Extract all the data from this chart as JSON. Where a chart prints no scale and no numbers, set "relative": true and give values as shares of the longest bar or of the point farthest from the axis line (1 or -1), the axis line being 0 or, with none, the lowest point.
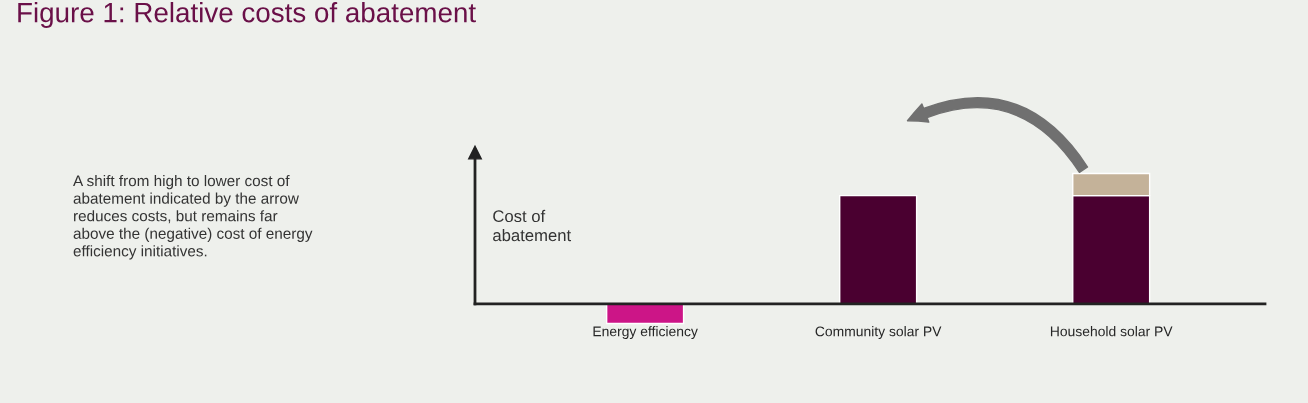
{
  "chart_data": {
    "type": "bar",
    "title": "Figure 1: Relative costs of abatement",
    "ylabel": "Cost of\nabatement",
    "annotations": [
      "A shift from high to lower cost of\nabatement indicated by the arrow\nreduces costs, but remains far\nabove the (negative) cost of energy\nefficiency initiatives."
    ],
    "categories": [
      "Energy efficiency",
      "Community solar PV",
      "Household solar PV"
    ],
    "relative": true,
    "stacked": true,
    "grid": false,
    "series": [
      {
        "colors": [
          "#cc1587",
          "#4a0030",
          "#4a0030"
        ],
        "values": [
          -0.15,
          0.83,
          0.83
        ]
      },
      {
        "color": "#c4b299",
        "values": [
          null,
          null,
          0.17
        ]
      }
    ]
  }
}
